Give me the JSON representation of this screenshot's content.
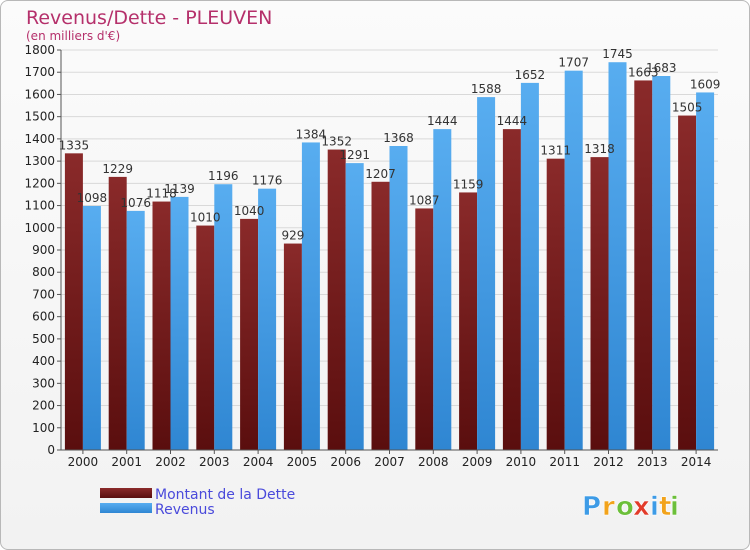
{
  "chart_data": {
    "type": "bar",
    "title": "Revenus/Dette - PLEUVEN",
    "subtitle": "(en milliers d'€)",
    "categories": [
      "2000",
      "2001",
      "2002",
      "2003",
      "2004",
      "2005",
      "2006",
      "2007",
      "2008",
      "2009",
      "2010",
      "2011",
      "2012",
      "2013",
      "2014"
    ],
    "series": [
      {
        "name": "Montant de la Dette",
        "color": "#7a1b1b",
        "values": [
          1335,
          1229,
          1118,
          1010,
          1040,
          929,
          1352,
          1207,
          1087,
          1159,
          1444,
          1311,
          1318,
          1663,
          1505
        ],
        "labels": [
          "1335",
          "1229",
          "1118",
          "1010",
          "1040",
          "929",
          "1352",
          "1207",
          "1087",
          "1159",
          "1444",
          "1311",
          "1318",
          "1663",
          "1505"
        ]
      },
      {
        "name": "Revenus",
        "color": "#3d9be6",
        "values": [
          1098,
          1076,
          1139,
          1196,
          1176,
          1384,
          1291,
          1368,
          1444,
          1588,
          1652,
          1707,
          1745,
          1683,
          1609
        ],
        "labels": [
          "1098",
          "1076",
          "1139",
          "1196",
          "1176",
          "1384",
          "1291",
          "1368",
          "1444",
          "1588",
          "1652",
          "1707",
          "1745",
          "1683",
          "1609"
        ]
      }
    ],
    "y_ticks": [
      0,
      100,
      200,
      300,
      400,
      500,
      600,
      700,
      800,
      900,
      1000,
      1100,
      1200,
      1300,
      1400,
      1500,
      1600,
      1700,
      1800
    ],
    "ylim": [
      0,
      1800
    ],
    "legend_position": "bottom-left"
  },
  "branding": {
    "logo_letters": [
      "P",
      "r",
      "o",
      "x",
      "i",
      "t",
      "i"
    ],
    "logo_colors": [
      "#3d9be6",
      "#f2a31b",
      "#6cbf3a",
      "#e23b2a",
      "#3d9be6",
      "#f2a31b",
      "#6cbf3a"
    ]
  }
}
